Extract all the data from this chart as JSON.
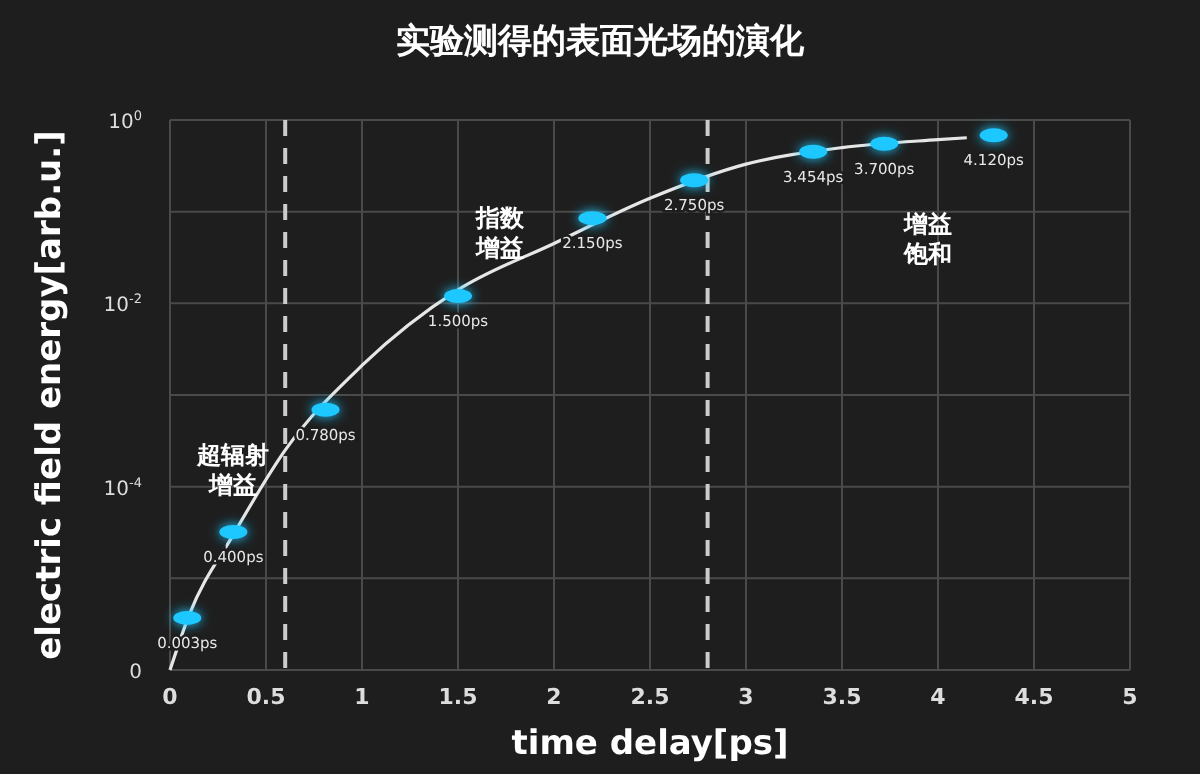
{
  "chart_data": {
    "type": "line",
    "title": "实验测得的表面光场的演化",
    "xlabel": "time delay[ps]",
    "ylabel": "electric field energy[arb.u.]",
    "log": "y",
    "grid": true,
    "xlim": [
      0,
      5
    ],
    "xticks": [
      0,
      0.5,
      1.0,
      1.5,
      2.0,
      2.5,
      3.0,
      3.5,
      4.0,
      4.5,
      5.0
    ],
    "ylim": [
      1e-06,
      1
    ],
    "yticks": [
      {
        "value": 1,
        "label": "10$^{0}$"
      },
      {
        "value": 0.1,
        "label": null
      },
      {
        "value": 0.01,
        "label": "10$^{-2}$"
      },
      {
        "value": 0.001,
        "label": null
      },
      {
        "value": 0.0001,
        "label": "10$^{-4}$"
      },
      {
        "value": 1e-05,
        "label": null
      },
      {
        "value": 1e-06,
        "label": "0"
      }
    ],
    "series": [
      {
        "color": "#e6e6e6",
        "line_style": "solid",
        "x": [
          0,
          0.1,
          0.33,
          0.6,
          1.0,
          1.5,
          2.0,
          2.5,
          3.0,
          3.5,
          4.0,
          4.15
        ],
        "values": [
          1e-06,
          4e-06,
          3e-05,
          0.00025,
          0.0021,
          0.014,
          0.045,
          0.14,
          0.33,
          0.5,
          0.61,
          0.64
        ]
      },
      {
        "type": "scatter",
        "color": "#1ec8ff",
        "marker": "circle",
        "x": [
          0.09,
          0.33,
          0.81,
          1.5,
          2.2,
          2.73,
          3.35,
          3.72,
          4.29
        ],
        "values": [
          3.7e-06,
          3.2e-05,
          0.00069,
          0.012,
          0.085,
          0.22,
          0.45,
          0.55,
          0.68
        ]
      }
    ],
    "ref_lines": [
      {
        "axis": "x",
        "value": 0.6,
        "label": null,
        "color": "#cccccc",
        "line_style": "dashed"
      },
      {
        "axis": "x",
        "value": 2.8,
        "label": null,
        "color": "#cccccc",
        "line_style": "dashed"
      }
    ],
    "annotations": [
      {
        "text": "0.003ps",
        "x": 0.09,
        "y": 3.7e-06
      },
      {
        "text": "0.400ps",
        "x": 0.33,
        "y": 3.2e-05
      },
      {
        "text": "0.780ps",
        "x": 0.81,
        "y": 0.00069
      },
      {
        "text": "1.500ps",
        "x": 1.5,
        "y": 0.012
      },
      {
        "text": "2.150ps",
        "x": 2.2,
        "y": 0.085
      },
      {
        "text": "2.750ps",
        "x": 2.73,
        "y": 0.22
      },
      {
        "text": "3.454ps",
        "x": 3.35,
        "y": 0.45
      },
      {
        "text": "3.700ps",
        "x": 3.72,
        "y": 0.55
      },
      {
        "text": "4.120ps",
        "x": 4.29,
        "y": 0.68
      },
      "超辐射增益",
      "指数增益",
      "增益饱和"
    ]
  }
}
